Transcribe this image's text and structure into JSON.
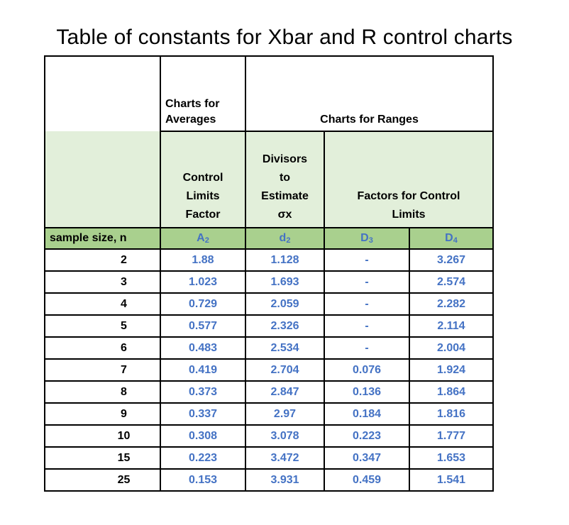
{
  "title": "Table of constants for Xbar and R control charts",
  "header": {
    "charts_for_averages_line1": "Charts for",
    "charts_for_averages_line2": "Averages",
    "charts_for_ranges": "Charts for Ranges",
    "control_limits_line1": "Control",
    "control_limits_line2": "Limits",
    "control_limits_line3": "Factor",
    "divisors_line1": "Divisors",
    "divisors_line2": "to",
    "divisors_line3": "Estimate",
    "divisors_line4": "σx",
    "factors_line1": "Factors for Control",
    "factors_line2": "Limits",
    "sample_size": "sample size, n",
    "sym_a2_base": "A",
    "sym_a2_sub": "2",
    "sym_d2_base": "d",
    "sym_d2_sub": "2",
    "sym_d3_base": "D",
    "sym_d3_sub": "3",
    "sym_d4_base": "D",
    "sym_d4_sub": "4"
  },
  "rows": [
    {
      "n": "2",
      "a2": "1.88",
      "d2": "1.128",
      "d3": "-",
      "d4": "3.267"
    },
    {
      "n": "3",
      "a2": "1.023",
      "d2": "1.693",
      "d3": "-",
      "d4": "2.574"
    },
    {
      "n": "4",
      "a2": "0.729",
      "d2": "2.059",
      "d3": "-",
      "d4": "2.282"
    },
    {
      "n": "5",
      "a2": "0.577",
      "d2": "2.326",
      "d3": "-",
      "d4": "2.114"
    },
    {
      "n": "6",
      "a2": "0.483",
      "d2": "2.534",
      "d3": "-",
      "d4": "2.004"
    },
    {
      "n": "7",
      "a2": "0.419",
      "d2": "2.704",
      "d3": "0.076",
      "d4": "1.924"
    },
    {
      "n": "8",
      "a2": "0.373",
      "d2": "2.847",
      "d3": "0.136",
      "d4": "1.864"
    },
    {
      "n": "9",
      "a2": "0.337",
      "d2": "2.97",
      "d3": "0.184",
      "d4": "1.816"
    },
    {
      "n": "10",
      "a2": "0.308",
      "d2": "3.078",
      "d3": "0.223",
      "d4": "1.777"
    },
    {
      "n": "15",
      "a2": "0.223",
      "d2": "3.472",
      "d3": "0.347",
      "d4": "1.653"
    },
    {
      "n": "25",
      "a2": "0.153",
      "d2": "3.931",
      "d3": "0.459",
      "d4": "1.541"
    }
  ],
  "colors": {
    "header_light_green": "#e2efda",
    "header_green": "#a9d08e",
    "value_blue": "#4472c4"
  }
}
